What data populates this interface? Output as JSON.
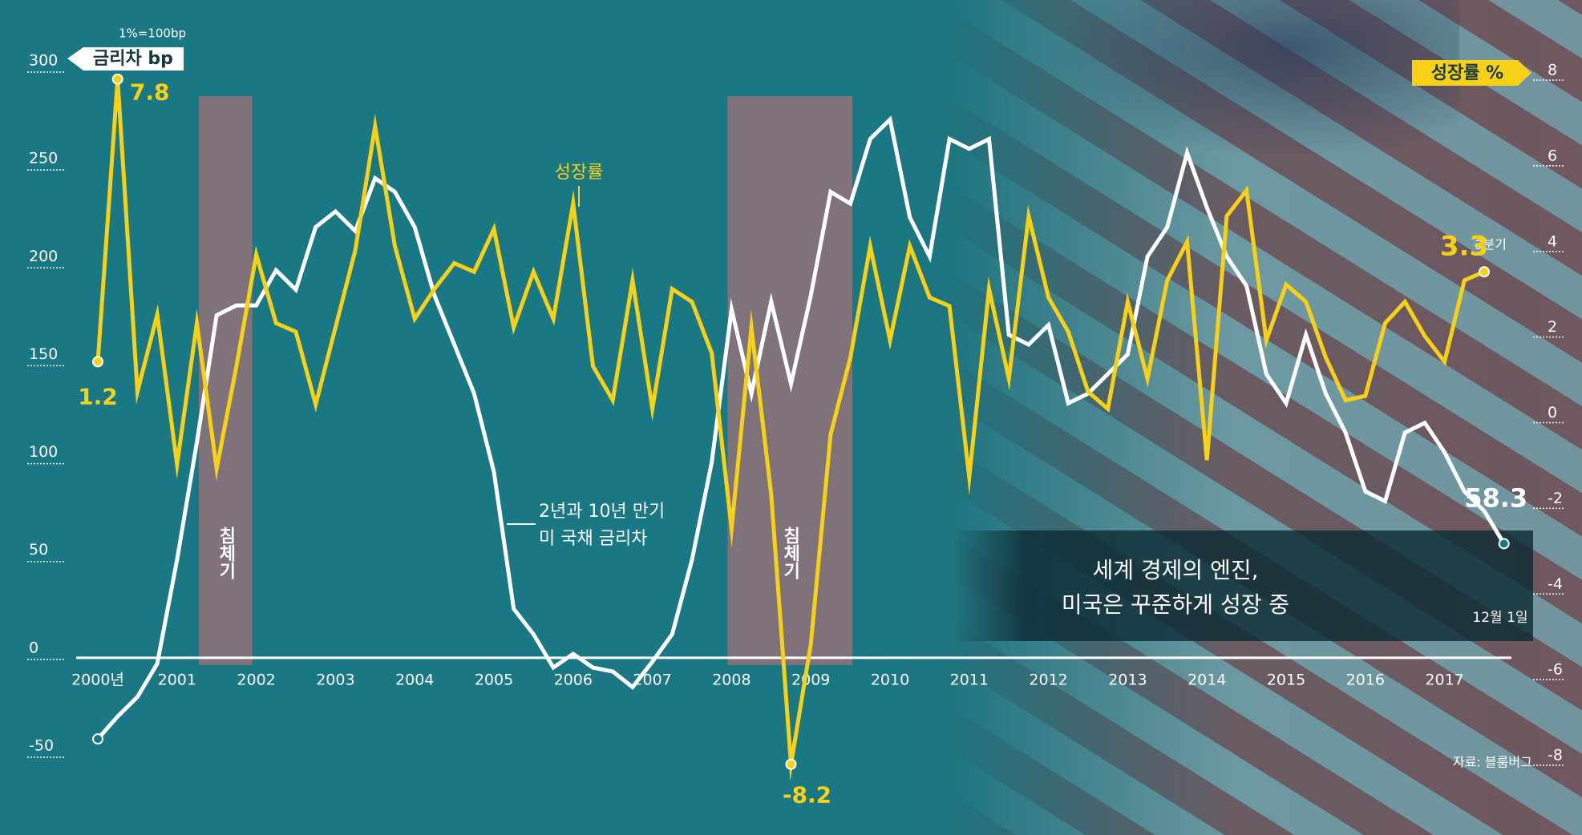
{
  "chart_data": {
    "type": "line",
    "note": "1%=100bp",
    "y_label": "금리차 bp",
    "y2_label": "성장률 %",
    "categories": [
      "2000년",
      null,
      null,
      null,
      "2001",
      null,
      null,
      null,
      "2002",
      null,
      null,
      null,
      "2003",
      null,
      null,
      null,
      "2004",
      null,
      null,
      null,
      "2005",
      null,
      null,
      null,
      "2006",
      null,
      null,
      null,
      "2007",
      null,
      null,
      null,
      "2008",
      null,
      null,
      null,
      "2009",
      null,
      null,
      null,
      "2010",
      null,
      null,
      null,
      "2011",
      null,
      null,
      null,
      "2012",
      null,
      null,
      null,
      "2013",
      null,
      null,
      null,
      "2014",
      null,
      null,
      null,
      "2015",
      null,
      null,
      null,
      "2016",
      null,
      null,
      null,
      "2017",
      null,
      null,
      null
    ],
    "series": [
      {
        "name": [
          "2년과 10년 만기",
          "미 국채 금리차"
        ],
        "color": "#ffffff",
        "axis": "y",
        "values": [
          -41.45,
          -30,
          -20,
          -3,
          50,
          110,
          175,
          180,
          180,
          198,
          188,
          220,
          228,
          218,
          245,
          238,
          220,
          185,
          160,
          135,
          95,
          25,
          12,
          -5,
          2,
          -5,
          -7,
          -15,
          -2,
          12,
          50,
          100,
          178,
          135,
          182,
          140,
          185,
          238,
          232,
          265,
          275,
          225,
          205,
          265,
          260,
          265,
          165,
          160,
          170,
          130,
          135,
          145,
          155,
          205,
          220,
          258,
          230,
          205,
          190,
          145,
          130,
          165,
          135,
          115,
          85,
          80,
          115,
          120,
          105,
          85,
          75,
          58.3
        ]
      },
      {
        "name": "성장률",
        "color": "#f7d117",
        "axis": "y2",
        "values": [
          1.2,
          7.8,
          0.5,
          2.3,
          -1.2,
          2.1,
          -1.3,
          1.1,
          3.7,
          2.1,
          1.9,
          0.2,
          2.0,
          3.8,
          6.7,
          3.9,
          2.2,
          2.9,
          3.5,
          3.3,
          4.3,
          2.0,
          3.3,
          2.2,
          4.9,
          1.1,
          0.3,
          3.1,
          0.1,
          2.9,
          2.6,
          1.4,
          -2.7,
          2.0,
          -1.9,
          -8.2,
          -5.4,
          -0.5,
          1.3,
          3.9,
          1.7,
          3.9,
          2.7,
          2.5,
          -1.5,
          2.9,
          0.8,
          4.6,
          2.7,
          1.9,
          0.5,
          0.1,
          2.6,
          0.8,
          3.1,
          4.0,
          -1.1,
          4.6,
          5.2,
          1.7,
          3.0,
          2.6,
          1.3,
          0.3,
          0.4,
          2.1,
          2.6,
          1.8,
          1.2,
          3.1,
          3.3,
          null
        ]
      }
    ],
    "ylim": [
      -50,
      300
    ],
    "yticks": [
      -50,
      0,
      50,
      100,
      150,
      200,
      250,
      300
    ],
    "y2lim": [
      -8,
      8
    ],
    "y2ticks": [
      -8,
      -6,
      -4,
      -2,
      0,
      2,
      4,
      6,
      8
    ],
    "recession_label": [
      "침체기",
      "침체기"
    ],
    "last_quarter_label": "3분기",
    "last_date_label": "12월 1일",
    "callout": [
      "세계 경제의 엔진,",
      "미국은 꾸준하게 성장 중"
    ],
    "source": "자료: 블룸버그"
  }
}
